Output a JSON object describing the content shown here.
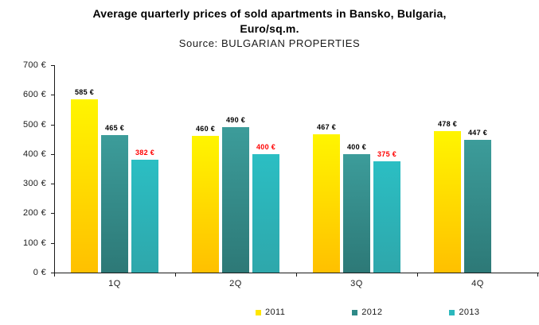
{
  "chart_data": {
    "type": "bar",
    "title": "Average quarterly  prices of sold apartments  in Bansko, Bulgaria,\nEuro/sq.m.",
    "subtitle": "Source: BULGARIAN PROPERTIES",
    "categories": [
      "1Q",
      "2Q",
      "3Q",
      "4Q"
    ],
    "series": [
      {
        "name": "2011",
        "values": [
          585,
          460,
          467,
          478
        ],
        "label_color": "#000000",
        "color_top": "#FFF500",
        "color_bottom": "#FFC000",
        "legend_color": "#FFE600"
      },
      {
        "name": "2012",
        "values": [
          465,
          490,
          400,
          447
        ],
        "label_color": "#000000",
        "color_top": "#3C9C9A",
        "color_bottom": "#2D7977",
        "legend_color": "#2E8987"
      },
      {
        "name": "2013",
        "values": [
          382,
          400,
          375,
          null
        ],
        "label_color": "#FF0000",
        "color_top": "#2BBEC3",
        "color_bottom": "#2EA7AB",
        "legend_color": "#2BB8BD"
      }
    ],
    "ylim": [
      0,
      700
    ],
    "ytick_step": 100,
    "ytick_suffix": " €",
    "value_label_suffix": " €",
    "grid": false,
    "legend_position": "bottom",
    "axis_color": "#1a1a1a",
    "background_color": "#ffffff"
  }
}
